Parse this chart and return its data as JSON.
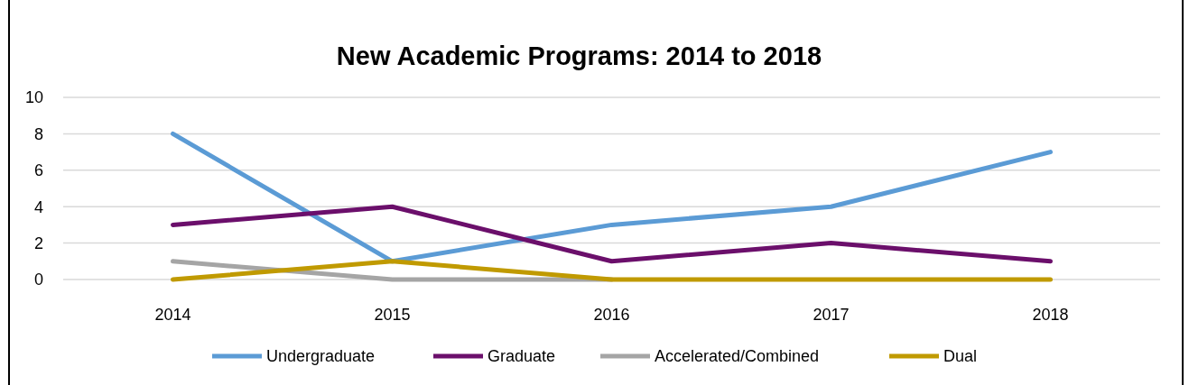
{
  "chart_data": {
    "type": "line",
    "title": "New Academic Programs: 2014 to 2018",
    "categories": [
      "2014",
      "2015",
      "2016",
      "2017",
      "2018"
    ],
    "series": [
      {
        "name": "Undergraduate",
        "color": "#5b9bd5",
        "values": [
          8,
          1,
          3,
          4,
          7
        ]
      },
      {
        "name": "Graduate",
        "color": "#6b0f6b",
        "values": [
          3,
          4,
          1,
          2,
          1
        ]
      },
      {
        "name": "Accelerated/Combined",
        "color": "#a5a5a5",
        "values": [
          1,
          0,
          0,
          null,
          null
        ]
      },
      {
        "name": "Dual",
        "color": "#c09a00",
        "values": [
          0,
          1,
          0,
          0,
          0
        ]
      }
    ],
    "ylim": [
      0,
      10
    ],
    "yticks": [
      0,
      2,
      4,
      6,
      8,
      10
    ],
    "grid": "y",
    "legend": "bottom",
    "marker": "none",
    "line_style": "solid"
  }
}
